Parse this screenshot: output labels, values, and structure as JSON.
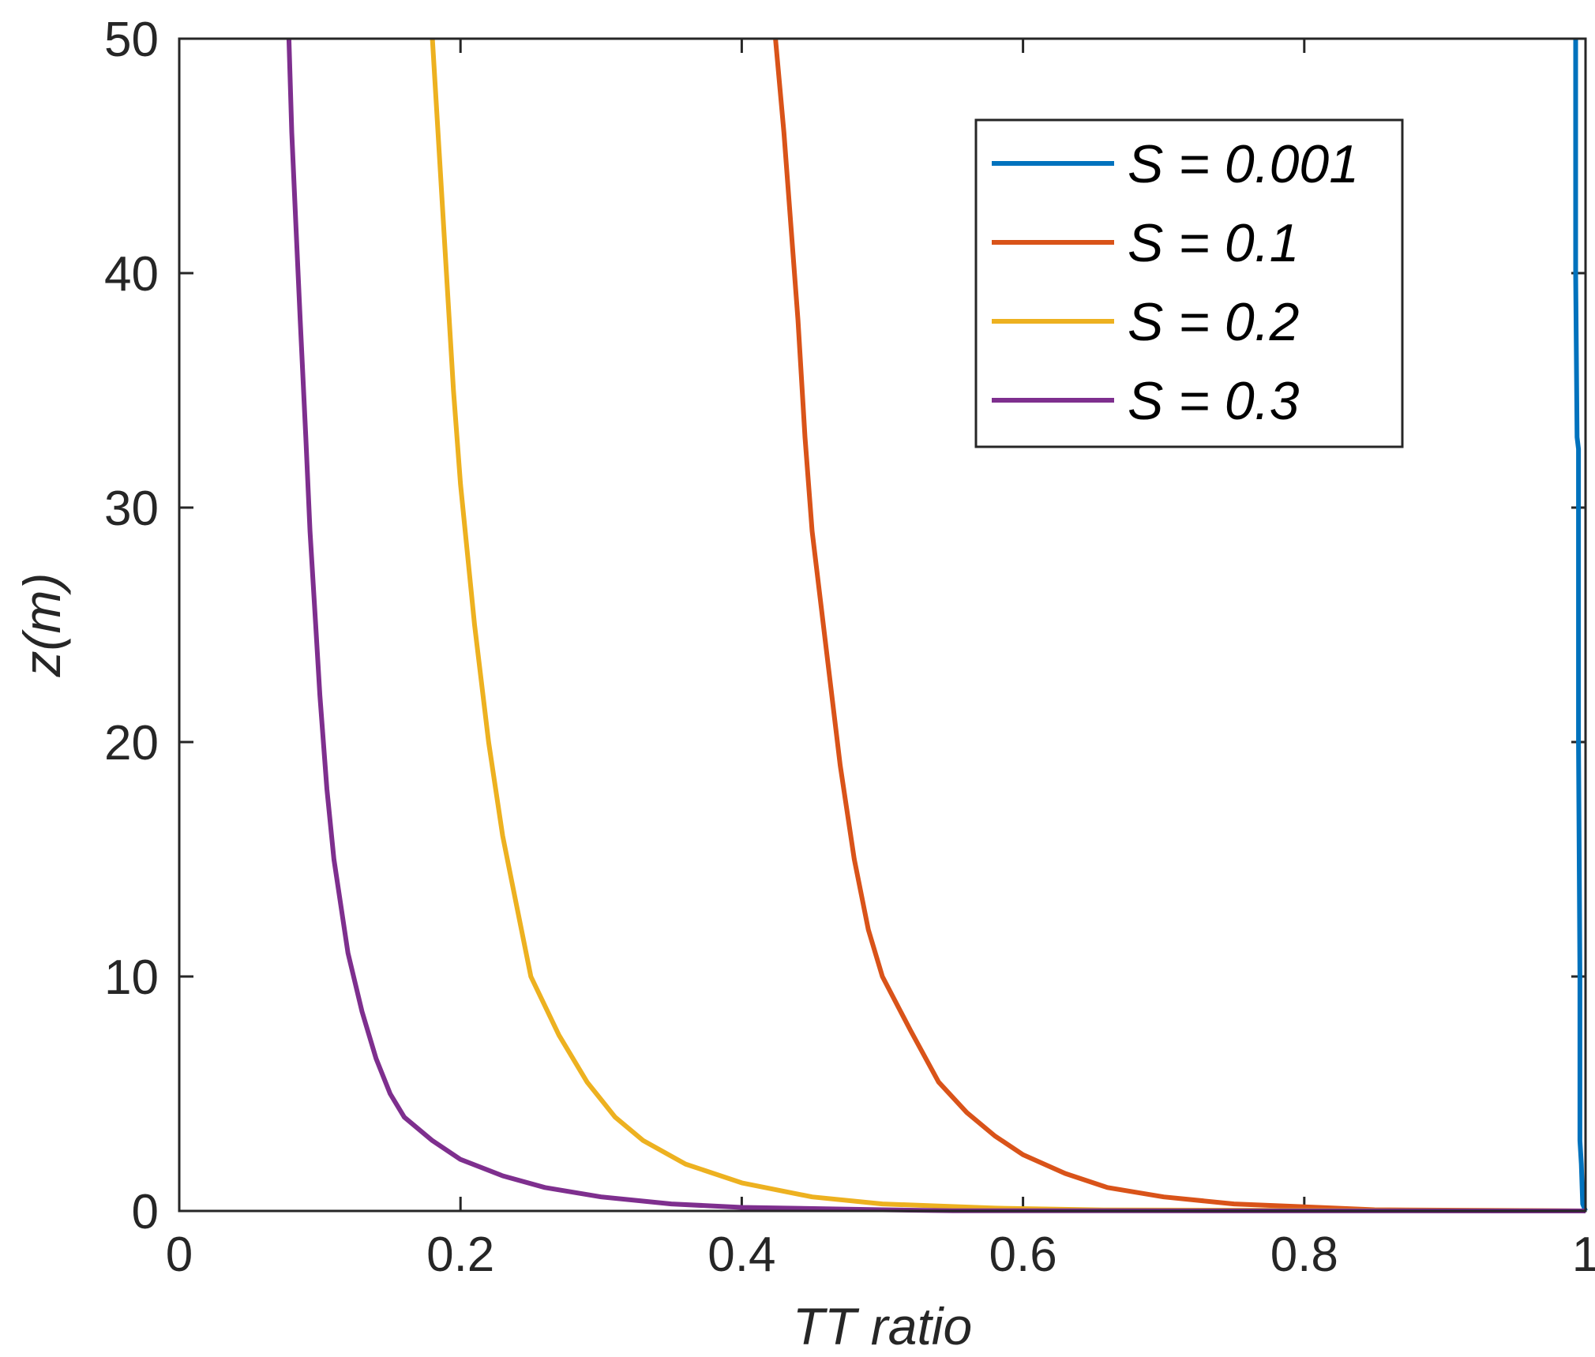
{
  "chart_data": {
    "type": "line",
    "xlabel": "TT ratio",
    "ylabel": "z(m)",
    "xlim": [
      0,
      1
    ],
    "ylim": [
      0,
      50
    ],
    "xticks": [
      0,
      0.2,
      0.4,
      0.6,
      0.8,
      1
    ],
    "xtick_labels": [
      "0",
      "0.2",
      "0.4",
      "0.6",
      "0.8",
      "1"
    ],
    "yticks": [
      0,
      10,
      20,
      30,
      40,
      50
    ],
    "ytick_labels": [
      "0",
      "10",
      "20",
      "30",
      "40",
      "50"
    ],
    "grid": false,
    "legend_position": "top-right",
    "series": [
      {
        "name": "S = 0.001",
        "color": "#0072BD",
        "points": [
          [
            0.993,
            50
          ],
          [
            0.993,
            40
          ],
          [
            0.994,
            33
          ],
          [
            0.995,
            32.5
          ],
          [
            0.995,
            20
          ],
          [
            0.996,
            10
          ],
          [
            0.996,
            3
          ],
          [
            0.997,
            2
          ],
          [
            0.998,
            0.3
          ],
          [
            1.0,
            0
          ]
        ]
      },
      {
        "name": "S = 0.1",
        "color": "#D95319",
        "points": [
          [
            0.424,
            50
          ],
          [
            0.43,
            46
          ],
          [
            0.435,
            42
          ],
          [
            0.44,
            38
          ],
          [
            0.445,
            33
          ],
          [
            0.45,
            29
          ],
          [
            0.46,
            24
          ],
          [
            0.47,
            19
          ],
          [
            0.48,
            15
          ],
          [
            0.49,
            12
          ],
          [
            0.5,
            10
          ],
          [
            0.52,
            7.7
          ],
          [
            0.54,
            5.5
          ],
          [
            0.56,
            4.2
          ],
          [
            0.58,
            3.2
          ],
          [
            0.6,
            2.4
          ],
          [
            0.63,
            1.6
          ],
          [
            0.66,
            1.0
          ],
          [
            0.7,
            0.6
          ],
          [
            0.75,
            0.3
          ],
          [
            0.81,
            0.15
          ],
          [
            0.85,
            0.05
          ],
          [
            1.0,
            0
          ]
        ]
      },
      {
        "name": "S = 0.2",
        "color": "#EDB120",
        "points": [
          [
            0.18,
            50
          ],
          [
            0.185,
            45
          ],
          [
            0.19,
            40
          ],
          [
            0.195,
            35
          ],
          [
            0.2,
            31
          ],
          [
            0.21,
            25
          ],
          [
            0.22,
            20
          ],
          [
            0.23,
            16
          ],
          [
            0.24,
            13
          ],
          [
            0.25,
            10
          ],
          [
            0.27,
            7.5
          ],
          [
            0.29,
            5.5
          ],
          [
            0.31,
            4.0
          ],
          [
            0.33,
            3.0
          ],
          [
            0.36,
            2.0
          ],
          [
            0.4,
            1.2
          ],
          [
            0.45,
            0.6
          ],
          [
            0.5,
            0.3
          ],
          [
            0.58,
            0.12
          ],
          [
            0.66,
            0.04
          ],
          [
            1.0,
            0
          ]
        ]
      },
      {
        "name": "S = 0.3",
        "color": "#7E2F8E",
        "points": [
          [
            0.078,
            50
          ],
          [
            0.08,
            46
          ],
          [
            0.083,
            42
          ],
          [
            0.086,
            38
          ],
          [
            0.09,
            33
          ],
          [
            0.093,
            29
          ],
          [
            0.097,
            25
          ],
          [
            0.1,
            22
          ],
          [
            0.105,
            18
          ],
          [
            0.11,
            15
          ],
          [
            0.12,
            11
          ],
          [
            0.13,
            8.5
          ],
          [
            0.14,
            6.5
          ],
          [
            0.15,
            5.0
          ],
          [
            0.16,
            4.0
          ],
          [
            0.18,
            3.0
          ],
          [
            0.2,
            2.2
          ],
          [
            0.23,
            1.5
          ],
          [
            0.26,
            1.0
          ],
          [
            0.3,
            0.6
          ],
          [
            0.35,
            0.3
          ],
          [
            0.4,
            0.15
          ],
          [
            0.5,
            0.05
          ],
          [
            0.55,
            0.01
          ],
          [
            1.0,
            0
          ]
        ]
      }
    ]
  }
}
